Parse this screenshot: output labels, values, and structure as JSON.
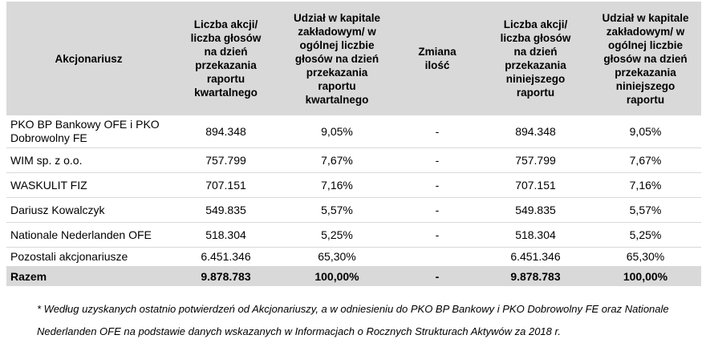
{
  "table": {
    "headers": [
      "Akcjonariusz",
      "Liczba akcji/\nliczba głosów\nna dzień\nprzekazania\nraportu\nkwartalnego",
      "Udział w kapitale\nzakładowym/ w\nogólnej liczbie\ngłosów na dzień\nprzekazania\nraportu\nkwartalnego",
      "Zmiana\nilość",
      "Liczba akcji/\nliczba głosów\nna dzień\nprzekazania\nniniejszego\nraportu",
      "Udział w kapitale\nzakładowym/ w\nogólnej liczbie\ngłosów na dzień\nprzekazania\nniniejszego\nraportu"
    ],
    "rows": [
      [
        "PKO BP Bankowy OFE i PKO\nDobrowolny FE",
        "894.348",
        "9,05%",
        "-",
        "894.348",
        "9,05%"
      ],
      [
        "WIM sp. z o.o.",
        "757.799",
        "7,67%",
        "-",
        "757.799",
        "7,67%"
      ],
      [
        "WASKULIT FIZ",
        "707.151",
        "7,16%",
        "-",
        "707.151",
        "7,16%"
      ],
      [
        "Dariusz Kowalczyk",
        "549.835",
        "5,57%",
        "-",
        "549.835",
        "5,57%"
      ],
      [
        "Nationale Nederlanden OFE",
        "518.304",
        "5,25%",
        "-",
        "518.304",
        "5,25%"
      ],
      [
        "Pozostali akcjonariusze",
        "6.451.346",
        "65,30%",
        "",
        "6.451.346",
        "65,30%"
      ]
    ],
    "total": [
      "Razem",
      "9.878.783",
      "100,00%",
      "-",
      "9.878.783",
      "100,00%"
    ]
  },
  "footnote": "* Według uzyskanych ostatnio potwierdzeń od Akcjonariuszy, a w odniesieniu do PKO BP Bankowy i PKO Dobrowolny FE oraz Nationale Nederlanden OFE na podstawie danych wskazanych w Informacjach o Rocznych Strukturach Aktywów za 2018 r.",
  "colors": {
    "header_bg": "#d9d9d9",
    "row_divider": "#d9d9d9"
  }
}
